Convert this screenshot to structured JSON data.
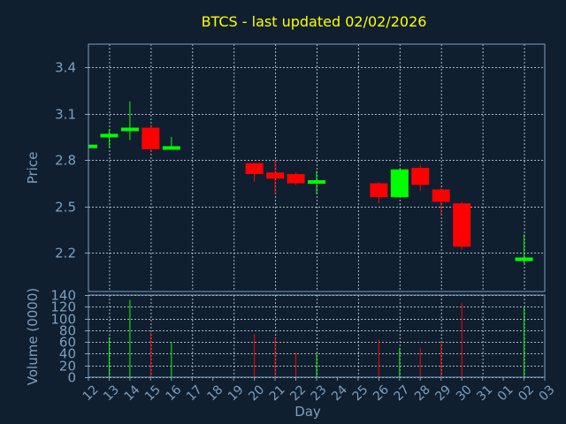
{
  "chart_data": {
    "type": "candlestick",
    "title": "BTCS - last updated 02/02/2026",
    "xlabel": "Day",
    "price_ylabel": "Price",
    "volume_ylabel": "Volume (0000)",
    "x_ticks": [
      "12",
      "13",
      "14",
      "15",
      "16",
      "17",
      "18",
      "19",
      "20",
      "21",
      "22",
      "23",
      "24",
      "25",
      "26",
      "27",
      "28",
      "29",
      "30",
      "31",
      "01",
      "02",
      "03"
    ],
    "price_yticks": [
      2.2,
      2.5,
      2.8,
      3.1,
      3.4
    ],
    "price_ylim": [
      1.95,
      3.55
    ],
    "volume_yticks": [
      0,
      20,
      40,
      60,
      80,
      100,
      120,
      140
    ],
    "volume_ylim": [
      0,
      140
    ],
    "grid": true,
    "colors": {
      "background": "#0f1f2f",
      "up": "#00ff00",
      "down": "#ff0000",
      "title": "#ffff00",
      "axis": "#7f9fbf",
      "grid": "#c0c8d0"
    },
    "candles": [
      {
        "day": "12",
        "open": 2.88,
        "high": 2.9,
        "low": 2.87,
        "close": 2.9,
        "volume": 0
      },
      {
        "day": "13",
        "open": 2.95,
        "high": 3.0,
        "low": 2.88,
        "close": 2.97,
        "volume": 68
      },
      {
        "day": "14",
        "open": 3.0,
        "high": 3.18,
        "low": 2.93,
        "close": 3.01,
        "volume": 132
      },
      {
        "day": "15",
        "open": 3.01,
        "high": 3.02,
        "low": 2.85,
        "close": 2.87,
        "volume": 75
      },
      {
        "day": "16",
        "open": 2.87,
        "high": 2.95,
        "low": 2.87,
        "close": 2.89,
        "volume": 60
      },
      {
        "day": "20",
        "open": 2.78,
        "high": 2.78,
        "low": 2.66,
        "close": 2.71,
        "volume": 73
      },
      {
        "day": "21",
        "open": 2.72,
        "high": 2.8,
        "low": 2.58,
        "close": 2.68,
        "volume": 67
      },
      {
        "day": "22",
        "open": 2.71,
        "high": 2.72,
        "low": 2.64,
        "close": 2.65,
        "volume": 42
      },
      {
        "day": "23",
        "open": 2.66,
        "high": 2.73,
        "low": 2.58,
        "close": 2.67,
        "volume": 40
      },
      {
        "day": "26",
        "open": 2.65,
        "high": 2.66,
        "low": 2.52,
        "close": 2.56,
        "volume": 64
      },
      {
        "day": "27",
        "open": 2.56,
        "high": 2.74,
        "low": 2.56,
        "close": 2.74,
        "volume": 50
      },
      {
        "day": "28",
        "open": 2.75,
        "high": 2.77,
        "low": 2.6,
        "close": 2.64,
        "volume": 50
      },
      {
        "day": "29",
        "open": 2.61,
        "high": 2.62,
        "low": 2.45,
        "close": 2.53,
        "volume": 60
      },
      {
        "day": "30",
        "open": 2.52,
        "high": 2.53,
        "low": 2.22,
        "close": 2.24,
        "volume": 126
      },
      {
        "day": "02",
        "open": 2.15,
        "high": 2.32,
        "low": 2.13,
        "close": 2.17,
        "volume": 120
      }
    ]
  }
}
